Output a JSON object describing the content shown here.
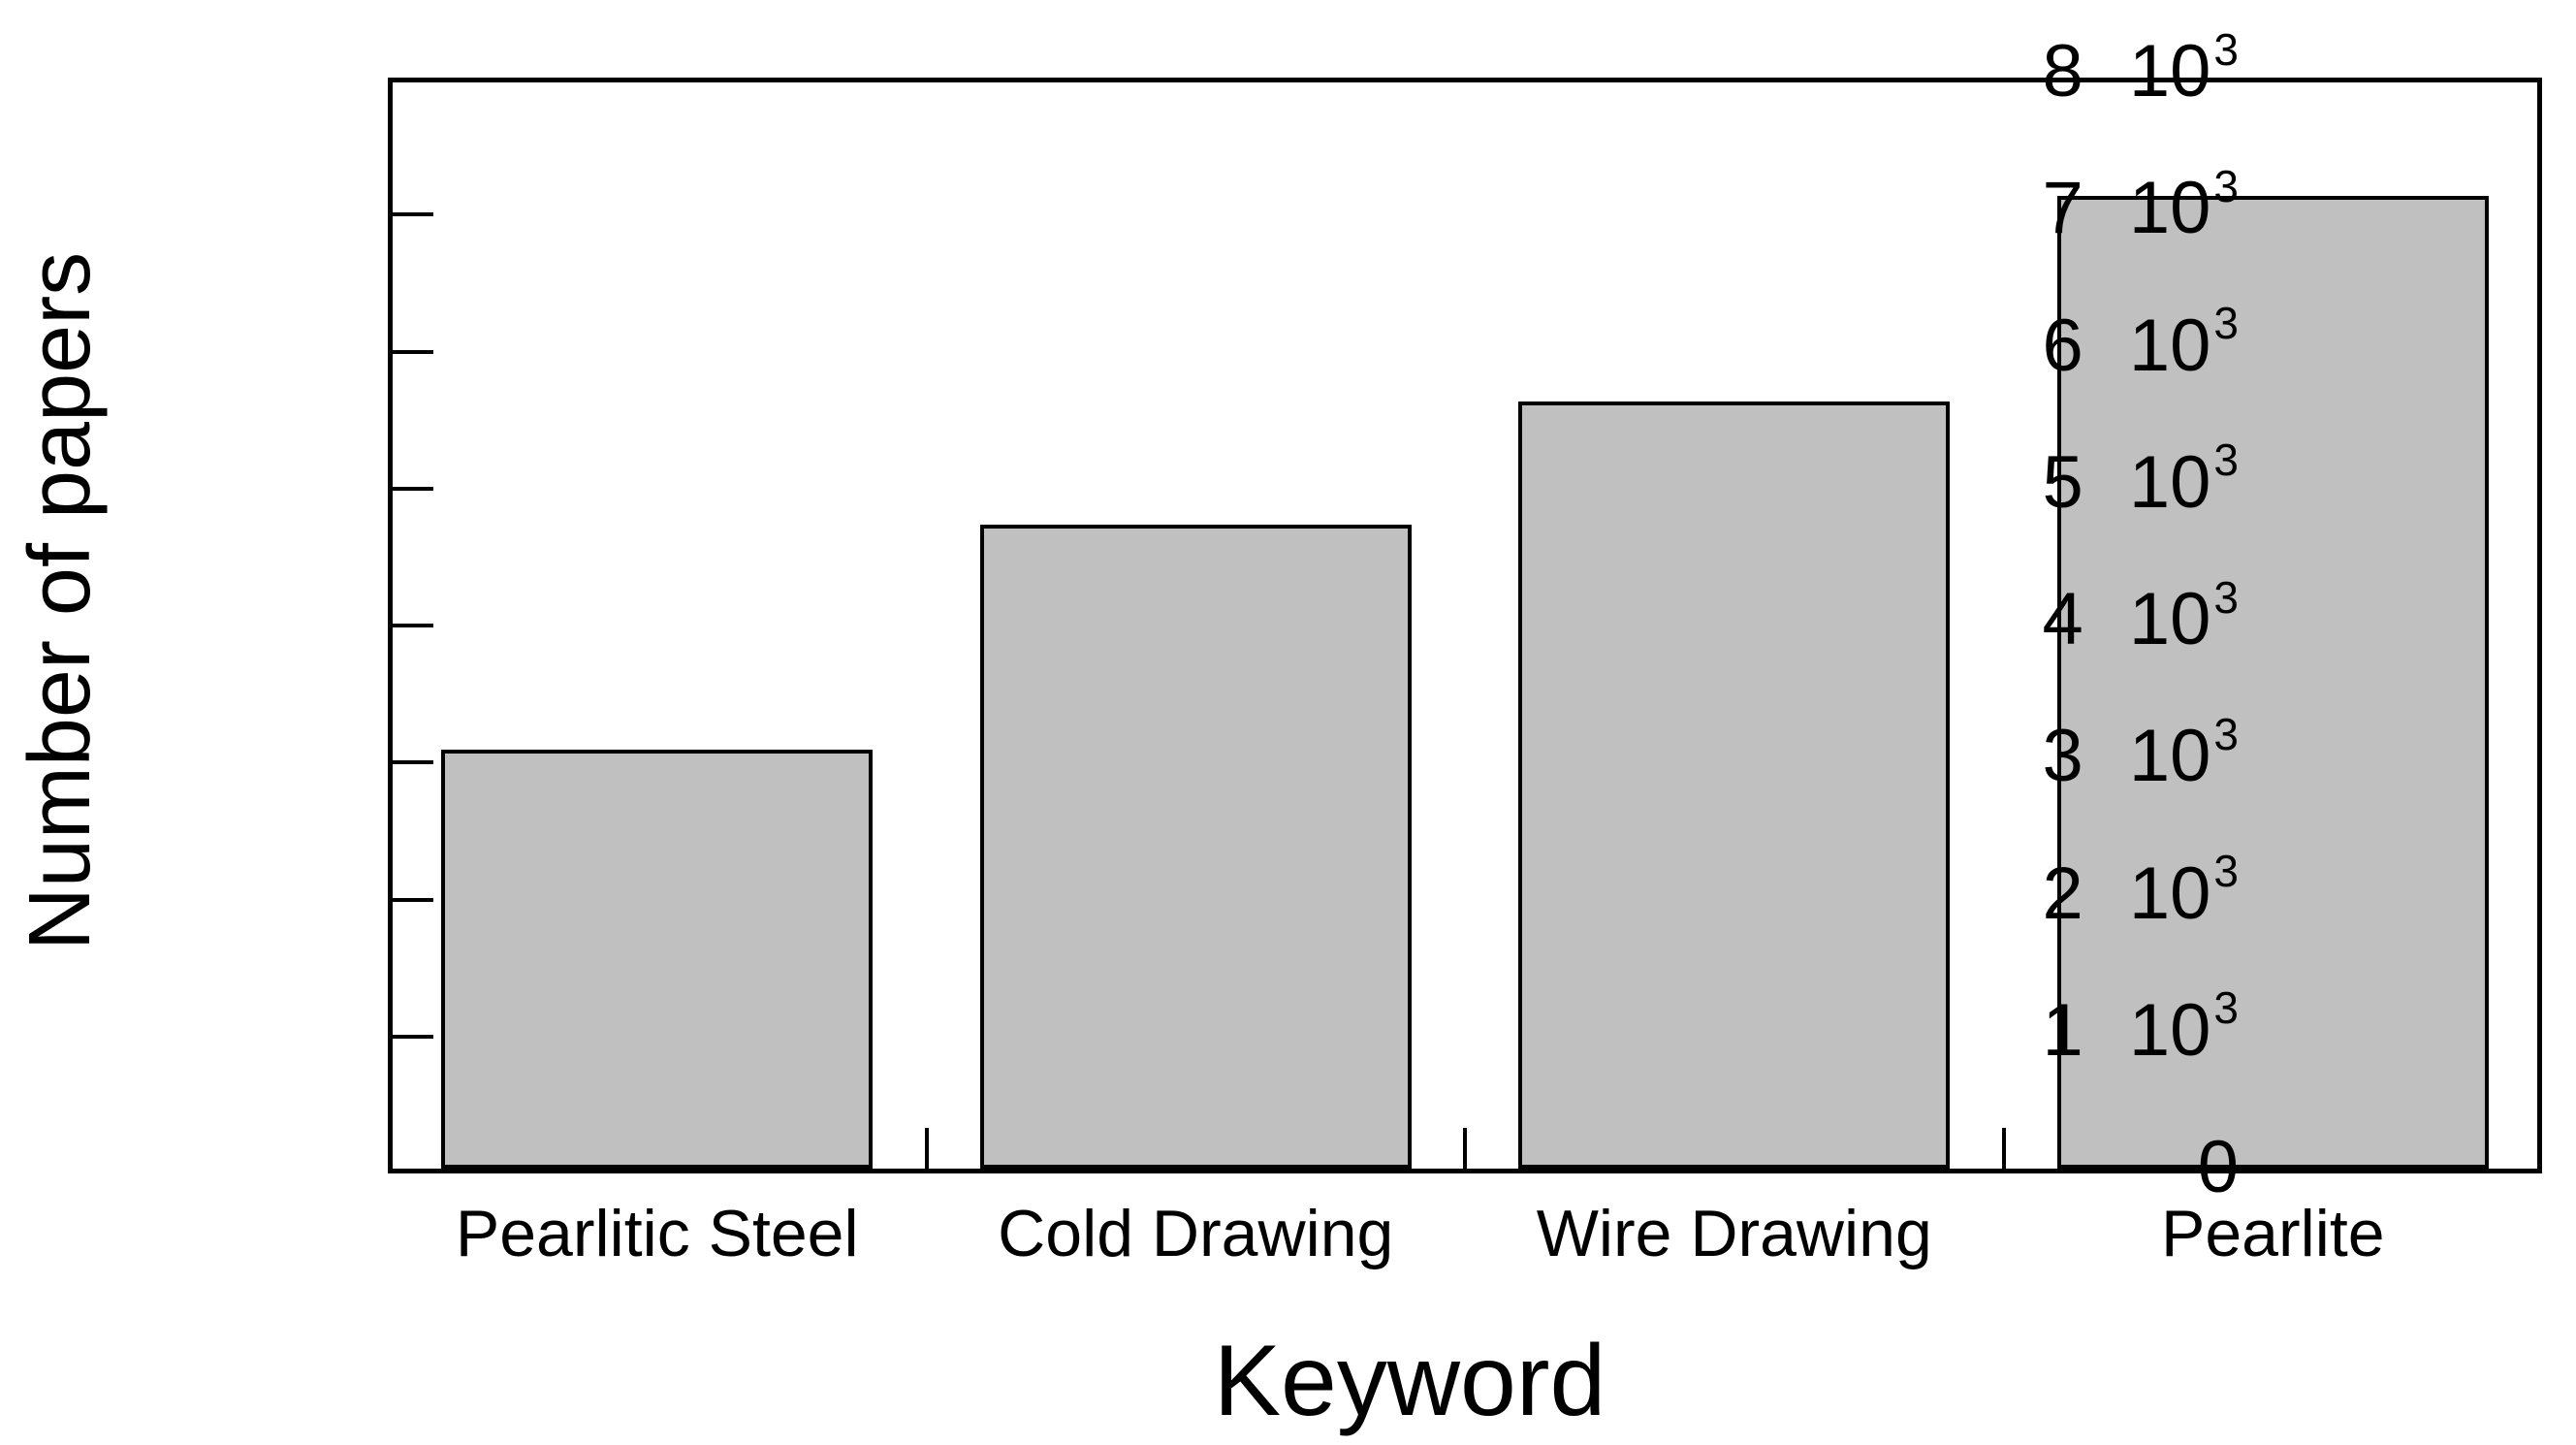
{
  "chart_data": {
    "type": "bar",
    "title": "",
    "xlabel": "Keyword",
    "ylabel": "Number of papers",
    "categories": [
      "Pearlitic Steel",
      "Cold Drawing",
      "Wire Drawing",
      "Pearlite"
    ],
    "values": [
      3060,
      4700,
      5600,
      7100
    ],
    "ylim": [
      0,
      8000
    ],
    "y_tick_step": 1000,
    "y_ticks": [
      {
        "value": 8000,
        "coef": "8",
        "base": "10",
        "exp": "3"
      },
      {
        "value": 7000,
        "coef": "7",
        "base": "10",
        "exp": "3"
      },
      {
        "value": 6000,
        "coef": "6",
        "base": "10",
        "exp": "3"
      },
      {
        "value": 5000,
        "coef": "5",
        "base": "10",
        "exp": "3"
      },
      {
        "value": 4000,
        "coef": "4",
        "base": "10",
        "exp": "3"
      },
      {
        "value": 3000,
        "coef": "3",
        "base": "10",
        "exp": "3"
      },
      {
        "value": 2000,
        "coef": "2",
        "base": "10",
        "exp": "3"
      },
      {
        "value": 1000,
        "coef": "1",
        "base": "10",
        "exp": "3"
      },
      {
        "value": 0,
        "coef": "0",
        "base": null,
        "exp": null
      }
    ],
    "grid": false,
    "legend": null,
    "colors": {
      "bar_fill": "#c0c0c0",
      "bar_border": "#000000",
      "axis": "#000000",
      "background": "#ffffff",
      "text": "#000000"
    }
  }
}
